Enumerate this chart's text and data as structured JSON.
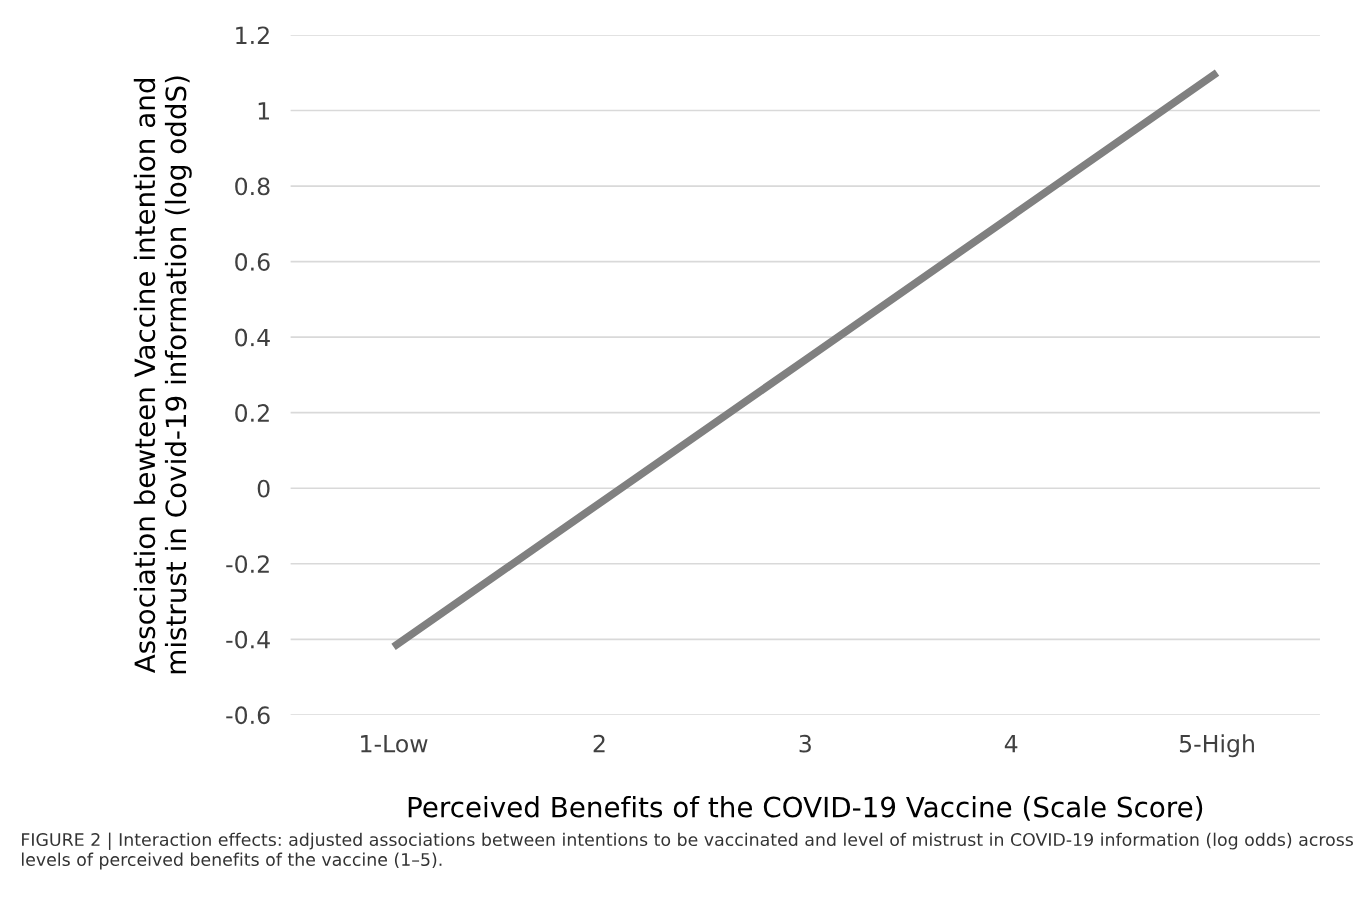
{
  "chart_data": {
    "type": "line",
    "categories": [
      "1-Low",
      "2",
      "3",
      "4",
      "5-High"
    ],
    "series": [
      {
        "color": "#808080",
        "values": [
          -0.42,
          -0.04,
          0.34,
          0.72,
          1.1
        ]
      }
    ],
    "ylim": [
      -0.6,
      1.2
    ],
    "yticks": [
      -0.6,
      -0.4,
      -0.2,
      {
        "value": 0,
        "label": "0"
      },
      0.2,
      0.4,
      0.6,
      0.8,
      {
        "value": 1,
        "label": "1"
      },
      1.2
    ],
    "xlabel": "Perceived Benefits of the COVID-19 Vaccine (Scale Score)",
    "ylabel": "Association bewteen Vaccine intention and\nmistrust in Covid-19 information (log oddS)",
    "grid": "y",
    "marker": "none",
    "line_style": "solid",
    "annotations": [
      "FIGURE 2 | Interaction effects: adjusted associations between intentions to be vaccinated and level of mistrust in COVID-19 information (log odds) across levels of perceived benefits of the vaccine (1–5)."
    ]
  }
}
